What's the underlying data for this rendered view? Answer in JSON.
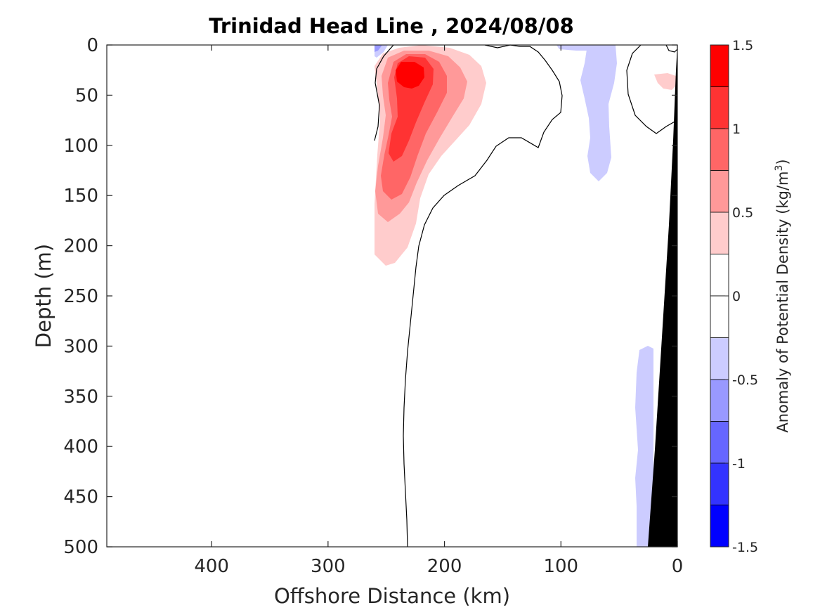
{
  "chart_data": {
    "type": "contour",
    "title": "Trinidad Head Line , 2024/08/08",
    "xlabel": "Offshore Distance (km)",
    "ylabel": "Depth (m)",
    "xlim": [
      490,
      0
    ],
    "x_reversed": true,
    "ylim": [
      500,
      0
    ],
    "y_reversed": true,
    "x_ticks": [
      "400",
      "300",
      "200",
      "100",
      "0"
    ],
    "x_tick_values": [
      400,
      300,
      200,
      100,
      0
    ],
    "y_ticks": [
      "0",
      "50",
      "100",
      "150",
      "200",
      "250",
      "300",
      "350",
      "400",
      "450",
      "500"
    ],
    "y_tick_values": [
      0,
      50,
      100,
      150,
      200,
      250,
      300,
      350,
      400,
      450,
      500
    ],
    "colorbar": {
      "label": "Anomaly of Potential Density (kg/m",
      "label_sup": "3",
      "label_end": ")",
      "ticks": [
        "1.5",
        "1",
        "0.5",
        "0",
        "-0.5",
        "-1",
        "-1.5"
      ],
      "tick_values": [
        1.5,
        1,
        0.5,
        0,
        -0.5,
        -1,
        -1.5
      ],
      "levels": [
        1.5,
        1.25,
        1.0,
        0.75,
        0.5,
        0.25,
        0,
        -0.25,
        -0.5,
        -0.75,
        -1.0,
        -1.25,
        -1.5
      ],
      "colors": [
        "#ff0000",
        "#ff3333",
        "#ff6666",
        "#ff9999",
        "#ffcccc",
        "#ffffff",
        "#ffffff",
        "#ccccff",
        "#9999ff",
        "#6666ff",
        "#3333ff",
        "#0000ff"
      ]
    },
    "features": [
      {
        "name": "positive-anomaly-core",
        "max_value": 1.5,
        "x_center_km": 230,
        "depth_center_m": 30
      },
      {
        "name": "positive-anomaly-tongue",
        "x_range_km": [
          265,
          165
        ],
        "depth_range_m": [
          0,
          220
        ]
      },
      {
        "name": "negative-anomaly-upper",
        "x_range_km": [
          80,
          50
        ],
        "depth_range_m": [
          0,
          135
        ]
      },
      {
        "name": "negative-anomaly-nearshore",
        "x_range_km": [
          40,
          20
        ],
        "depth_range_m": [
          290,
          500
        ]
      },
      {
        "name": "bathymetry",
        "color": "#000000"
      }
    ]
  }
}
